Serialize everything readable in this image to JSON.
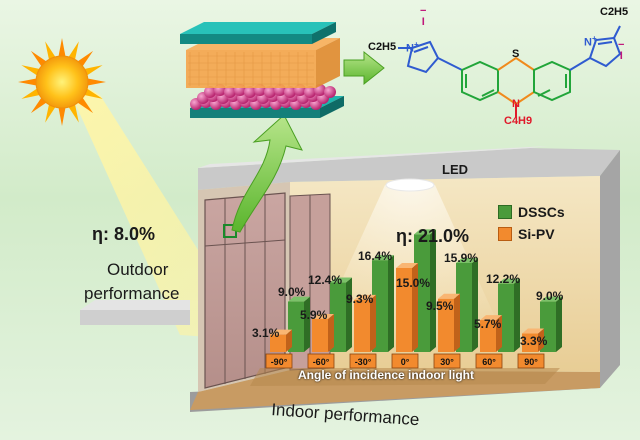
{
  "outdoor": {
    "efficiency": "η: 8.0%",
    "label_line1": "Outdoor",
    "label_line2": "performance"
  },
  "indoor": {
    "efficiency": "η: 21.0%",
    "label": "Indoor performance",
    "light_source": "LED",
    "axis_label": "Angle of incidence indoor light"
  },
  "molecule": {
    "left_group": "C2H5",
    "right_group": "C2H5",
    "bottom_group": "C4H9",
    "hetero_atom": "S",
    "nitrogen": "N",
    "counter_ion": "I",
    "charge": "+",
    "anion_charge": "−"
  },
  "colors": {
    "dssc": "#4a9b3b",
    "sipv": "#f28a2e",
    "teal": "#1fb5ad",
    "orange_layer": "#f5a44a",
    "sphere": "#d83f8f",
    "arrow": "#86cc4d"
  },
  "chart_data": {
    "type": "bar",
    "categories": [
      "-90°",
      "-60°",
      "-30°",
      "0°",
      "30°",
      "60°",
      "90°"
    ],
    "series": [
      {
        "name": "DSSCs",
        "values": [
          9.0,
          12.4,
          16.4,
          21.0,
          15.9,
          12.2,
          9.0
        ],
        "labels": [
          "9.0%",
          "12.4%",
          "16.4%",
          "",
          "15.9%",
          "12.2%",
          "9.0%"
        ]
      },
      {
        "name": "Si-PV",
        "values": [
          3.1,
          5.9,
          9.3,
          15.0,
          9.5,
          5.7,
          3.3
        ],
        "labels": [
          "3.1%",
          "5.9%",
          "9.3%",
          "15.0%",
          "9.5%",
          "5.7%",
          "3.3%"
        ]
      }
    ],
    "xlabel": "Angle of incidence indoor light",
    "legend": [
      "DSSCs",
      "Si-PV"
    ],
    "legend_position": "top-right"
  }
}
